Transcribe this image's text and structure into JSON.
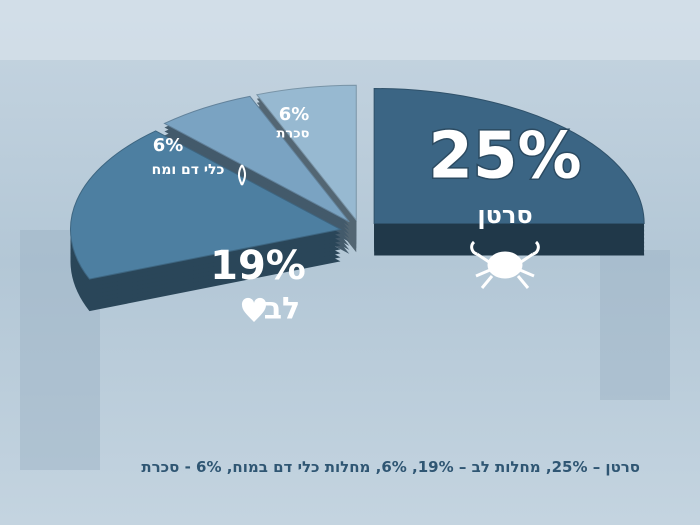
{
  "chart_data": {
    "type": "pie",
    "categories": [
      "סרטן",
      "לב",
      "כלי דם ומח",
      "סכרת"
    ],
    "values": [
      25,
      19,
      6,
      6
    ],
    "value_labels": [
      "25%",
      "19%",
      "6%",
      "6%"
    ],
    "colors": [
      "#3b6584",
      "#4d7fa1",
      "#7aa3c2",
      "#97b9d1"
    ],
    "caption": "סרטן – 25%, מחלות לב – 19%, 6%, מחלות כלי דם במוח, 6% - סכרת"
  }
}
